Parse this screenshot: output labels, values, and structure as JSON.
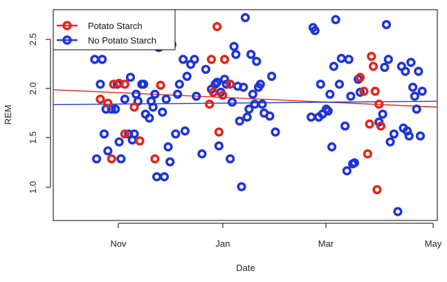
{
  "chart_data": {
    "type": "scatter",
    "xlabel": "Date",
    "ylabel": "REM",
    "x_ticks": [
      "Nov",
      "Jan",
      "Mar",
      "May"
    ],
    "y_ticks": [
      "1.0",
      "1.5",
      "2.0",
      "2.5"
    ],
    "xlim": [
      "2013-10-10",
      "2014-05-02"
    ],
    "ylim": [
      0.63,
      2.75
    ],
    "legend_position": "top-left",
    "series": [
      {
        "name": "Potato Starch",
        "color": "#e5251b",
        "points": [
          [
            "2013-11-04",
            1.85
          ],
          [
            "2013-11-08",
            1.81
          ],
          [
            "2013-11-10",
            1.25
          ],
          [
            "2013-11-11",
            2.0
          ],
          [
            "2013-11-14",
            2.01
          ],
          [
            "2013-11-17",
            2.0
          ],
          [
            "2013-11-17",
            1.5
          ],
          [
            "2013-11-22",
            1.77
          ],
          [
            "2013-11-25",
            1.43
          ],
          [
            "2013-12-03",
            1.25
          ],
          [
            "2013-12-06",
            1.99
          ],
          [
            "2014-01-01",
            1.8
          ],
          [
            "2014-01-02",
            2.25
          ],
          [
            "2014-01-03",
            1.92
          ],
          [
            "2014-01-05",
            2.58
          ],
          [
            "2014-01-06",
            1.52
          ],
          [
            "2014-01-08",
            1.89
          ],
          [
            "2014-01-09",
            2.25
          ],
          [
            "2014-01-12",
            2.0
          ],
          [
            "2014-03-22",
            2.07
          ],
          [
            "2014-03-24",
            1.93
          ],
          [
            "2014-03-26",
            1.3
          ],
          [
            "2014-03-27",
            1.6
          ],
          [
            "2014-03-28",
            2.28
          ],
          [
            "2014-03-29",
            2.18
          ],
          [
            "2014-03-30",
            1.93
          ],
          [
            "2014-03-31",
            0.94
          ],
          [
            "2014-04-01",
            1.8
          ],
          [
            "2014-04-02",
            1.58
          ]
        ]
      },
      {
        "name": "No Potato Starch",
        "color": "#1f35d8",
        "points": [
          [
            "2013-11-01",
            2.25
          ],
          [
            "2013-11-02",
            1.25
          ],
          [
            "2013-11-04",
            2.0
          ],
          [
            "2013-11-05",
            2.25
          ],
          [
            "2013-11-06",
            1.5
          ],
          [
            "2013-11-07",
            1.75
          ],
          [
            "2013-11-08",
            1.33
          ],
          [
            "2013-11-10",
            1.75
          ],
          [
            "2013-11-12",
            1.75
          ],
          [
            "2013-11-13",
            2.0
          ],
          [
            "2013-11-14",
            1.42
          ],
          [
            "2013-11-15",
            1.25
          ],
          [
            "2013-11-17",
            1.85
          ],
          [
            "2013-11-19",
            1.5
          ],
          [
            "2013-11-20",
            2.07
          ],
          [
            "2013-11-21",
            1.44
          ],
          [
            "2013-11-22",
            1.5
          ],
          [
            "2013-11-23",
            1.9
          ],
          [
            "2013-11-24",
            1.83
          ],
          [
            "2013-11-26",
            2.0
          ],
          [
            "2013-11-27",
            2.0
          ],
          [
            "2013-11-28",
            1.7
          ],
          [
            "2013-11-30",
            1.66
          ],
          [
            "2013-12-01",
            1.83
          ],
          [
            "2013-12-02",
            1.77
          ],
          [
            "2013-12-03",
            1.9
          ],
          [
            "2013-12-04",
            1.07
          ],
          [
            "2013-12-05",
            2.37
          ],
          [
            "2013-12-07",
            1.72
          ],
          [
            "2013-12-08",
            1.07
          ],
          [
            "2013-12-09",
            1.85
          ],
          [
            "2013-12-10",
            1.37
          ],
          [
            "2013-12-11",
            1.22
          ],
          [
            "2013-12-12",
            2.4
          ],
          [
            "2013-12-14",
            1.5
          ],
          [
            "2013-12-15",
            1.9
          ],
          [
            "2013-12-16",
            2.0
          ],
          [
            "2013-12-18",
            2.25
          ],
          [
            "2013-12-19",
            1.53
          ],
          [
            "2013-12-20",
            2.08
          ],
          [
            "2013-12-22",
            2.2
          ],
          [
            "2013-12-24",
            2.25
          ],
          [
            "2013-12-25",
            1.88
          ],
          [
            "2013-12-28",
            1.3
          ],
          [
            "2013-12-30",
            2.15
          ],
          [
            "2014-01-02",
            1.95
          ],
          [
            "2014-01-04",
            2.0
          ],
          [
            "2014-01-05",
            2.02
          ],
          [
            "2014-01-06",
            1.38
          ],
          [
            "2014-01-07",
            1.92
          ],
          [
            "2014-01-09",
            2.05
          ],
          [
            "2014-01-10",
            2.0
          ],
          [
            "2014-01-12",
            1.25
          ],
          [
            "2014-01-13",
            1.82
          ],
          [
            "2014-01-14",
            2.38
          ],
          [
            "2014-01-15",
            2.3
          ],
          [
            "2014-01-16",
            1.98
          ],
          [
            "2014-01-17",
            1.63
          ],
          [
            "2014-01-18",
            0.97
          ],
          [
            "2014-01-19",
            1.97
          ],
          [
            "2014-01-20",
            2.67
          ],
          [
            "2014-01-21",
            1.67
          ],
          [
            "2014-01-22",
            1.75
          ],
          [
            "2014-01-23",
            2.3
          ],
          [
            "2014-01-24",
            1.9
          ],
          [
            "2014-01-25",
            1.8
          ],
          [
            "2014-01-26",
            2.23
          ],
          [
            "2014-01-27",
            1.97
          ],
          [
            "2014-01-28",
            2.0
          ],
          [
            "2014-01-29",
            1.8
          ],
          [
            "2014-01-30",
            1.71
          ],
          [
            "2014-02-02",
            1.68
          ],
          [
            "2014-02-03",
            2.08
          ],
          [
            "2014-02-05",
            1.52
          ],
          [
            "2014-02-24",
            1.67
          ],
          [
            "2014-02-25",
            2.57
          ],
          [
            "2014-02-26",
            2.54
          ],
          [
            "2014-02-28",
            1.67
          ],
          [
            "2014-03-01",
            2.0
          ],
          [
            "2014-03-02",
            1.7
          ],
          [
            "2014-03-04",
            1.75
          ],
          [
            "2014-03-05",
            1.73
          ],
          [
            "2014-03-06",
            1.9
          ],
          [
            "2014-03-07",
            1.37
          ],
          [
            "2014-03-08",
            2.18
          ],
          [
            "2014-03-09",
            2.65
          ],
          [
            "2014-03-11",
            2.0
          ],
          [
            "2014-03-12",
            2.26
          ],
          [
            "2014-03-14",
            1.58
          ],
          [
            "2014-03-15",
            1.13
          ],
          [
            "2014-03-16",
            2.25
          ],
          [
            "2014-03-17",
            1.88
          ],
          [
            "2014-03-18",
            1.2
          ],
          [
            "2014-03-19",
            1.21
          ],
          [
            "2014-03-21",
            2.05
          ],
          [
            "2014-03-22",
            1.92
          ],
          [
            "2014-04-01",
            1.62
          ],
          [
            "2014-04-03",
            1.7
          ],
          [
            "2014-04-04",
            2.17
          ],
          [
            "2014-04-05",
            2.6
          ],
          [
            "2014-04-06",
            2.25
          ],
          [
            "2014-04-07",
            1.42
          ],
          [
            "2014-04-09",
            1.5
          ],
          [
            "2014-04-11",
            0.72
          ],
          [
            "2014-04-13",
            2.18
          ],
          [
            "2014-04-14",
            1.56
          ],
          [
            "2014-04-15",
            2.13
          ],
          [
            "2014-04-16",
            1.53
          ],
          [
            "2014-04-17",
            1.48
          ],
          [
            "2014-04-18",
            2.22
          ],
          [
            "2014-04-19",
            1.97
          ],
          [
            "2014-04-20",
            1.88
          ],
          [
            "2014-04-21",
            1.75
          ],
          [
            "2014-04-22",
            2.13
          ],
          [
            "2014-04-23",
            1.48
          ],
          [
            "2014-04-24",
            1.93
          ]
        ]
      }
    ],
    "trend_lines": [
      {
        "series": "Potato Starch",
        "color": "#e5251b",
        "from": [
          "2013-10-10",
          1.945
        ],
        "to": [
          "2014-05-02",
          1.77
        ]
      },
      {
        "series": "No Potato Starch",
        "color": "#1f35d8",
        "from": [
          "2013-10-10",
          1.795
        ],
        "to": [
          "2014-05-02",
          1.83
        ]
      }
    ]
  }
}
